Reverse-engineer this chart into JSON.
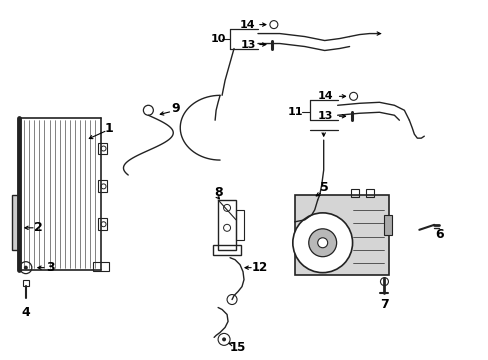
{
  "background_color": "#ffffff",
  "line_color": "#222222",
  "text_color": "#000000",
  "figsize": [
    4.89,
    3.6
  ],
  "dpi": 100
}
